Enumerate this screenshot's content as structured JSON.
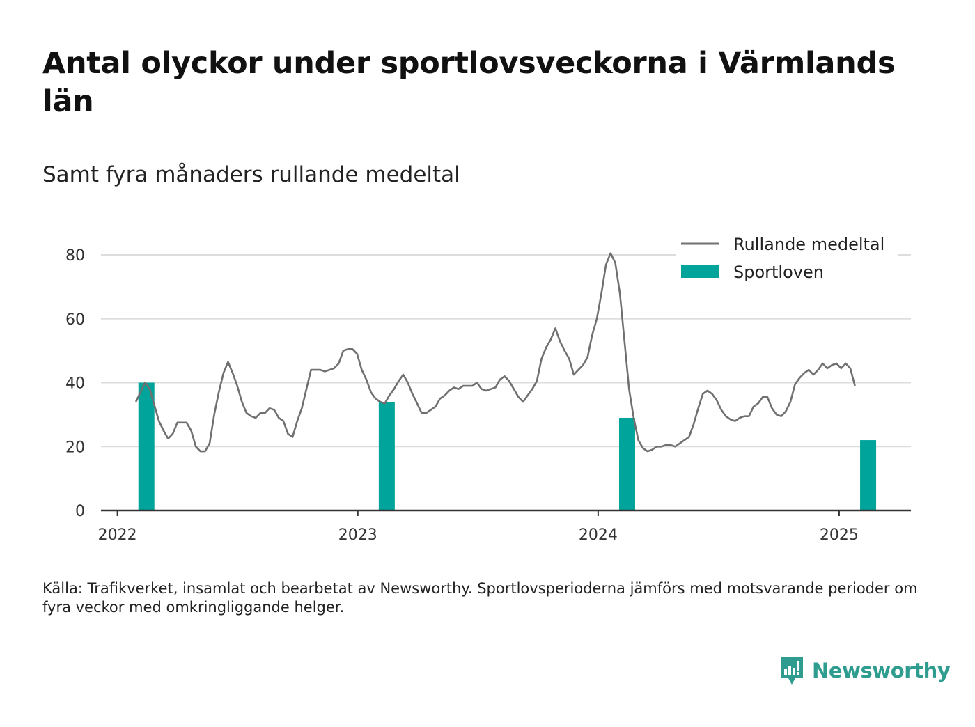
{
  "title": "Antal olyckor under sportlovsveckorna i Värmlands län",
  "subtitle": "Samt fyra månaders rullande medeltal",
  "source": "Källa: Trafikverket, insamlat och bearbetat av Newsworthy. Sportlovsperioderna jämförs med motsvarande perioder om fyra veckor med omkringliggande helger.",
  "brand": {
    "name": "Newsworthy",
    "icon": "newsworthy-logo-icon"
  },
  "colors": {
    "line": "#707070",
    "bar": "#00a49a",
    "grid": "#dddddd",
    "axis": "#333333"
  },
  "chart_data": {
    "type": "bar+line",
    "ylim": [
      0,
      80
    ],
    "yticks": [
      0,
      20,
      40,
      60,
      80
    ],
    "xlim": [
      "2021-12-07",
      "2025-04-20"
    ],
    "xticks": [
      {
        "label": "2022",
        "date": "2022-01-01"
      },
      {
        "label": "2023",
        "date": "2023-01-01"
      },
      {
        "label": "2024",
        "date": "2024-01-01"
      },
      {
        "label": "2025",
        "date": "2025-01-01"
      }
    ],
    "grid": true,
    "legend_position": "top-right",
    "series": [
      {
        "name": "Sportloven",
        "type": "bar",
        "points": [
          {
            "date": "2022-02-14",
            "value": 40
          },
          {
            "date": "2023-02-14",
            "value": 34
          },
          {
            "date": "2024-02-14",
            "value": 29
          },
          {
            "date": "2025-02-14",
            "value": 22
          }
        ]
      },
      {
        "name": "Rullande medeltal",
        "type": "line",
        "points": [
          [
            "2022-01-29",
            34
          ],
          [
            "2022-02-05",
            37
          ],
          [
            "2022-02-12",
            40
          ],
          [
            "2022-02-19",
            38
          ],
          [
            "2022-02-26",
            33
          ],
          [
            "2022-03-05",
            28
          ],
          [
            "2022-03-12",
            25
          ],
          [
            "2022-03-19",
            22.5
          ],
          [
            "2022-03-26",
            24
          ],
          [
            "2022-04-02",
            27.5
          ],
          [
            "2022-04-09",
            27.5
          ],
          [
            "2022-04-16",
            27.5
          ],
          [
            "2022-04-23",
            25
          ],
          [
            "2022-04-30",
            20
          ],
          [
            "2022-05-07",
            18.5
          ],
          [
            "2022-05-14",
            18.5
          ],
          [
            "2022-05-21",
            21
          ],
          [
            "2022-05-28",
            30
          ],
          [
            "2022-06-04",
            37
          ],
          [
            "2022-06-11",
            43
          ],
          [
            "2022-06-18",
            46.5
          ],
          [
            "2022-06-25",
            43
          ],
          [
            "2022-07-02",
            39
          ],
          [
            "2022-07-09",
            34
          ],
          [
            "2022-07-16",
            30.5
          ],
          [
            "2022-07-23",
            29.5
          ],
          [
            "2022-07-30",
            29
          ],
          [
            "2022-08-06",
            30.5
          ],
          [
            "2022-08-13",
            30.5
          ],
          [
            "2022-08-20",
            32
          ],
          [
            "2022-08-27",
            31.5
          ],
          [
            "2022-09-03",
            29
          ],
          [
            "2022-09-10",
            28
          ],
          [
            "2022-09-17",
            24
          ],
          [
            "2022-09-24",
            23
          ],
          [
            "2022-10-01",
            28
          ],
          [
            "2022-10-08",
            32
          ],
          [
            "2022-10-15",
            38
          ],
          [
            "2022-10-22",
            44
          ],
          [
            "2022-10-29",
            44
          ],
          [
            "2022-11-05",
            44
          ],
          [
            "2022-11-12",
            43.5
          ],
          [
            "2022-11-19",
            44
          ],
          [
            "2022-11-26",
            44.5
          ],
          [
            "2022-12-03",
            46
          ],
          [
            "2022-12-10",
            50
          ],
          [
            "2022-12-17",
            50.5
          ],
          [
            "2022-12-24",
            50.5
          ],
          [
            "2022-12-31",
            49
          ],
          [
            "2023-01-07",
            44
          ],
          [
            "2023-01-14",
            41
          ],
          [
            "2023-01-21",
            37
          ],
          [
            "2023-01-28",
            35
          ],
          [
            "2023-02-04",
            34
          ],
          [
            "2023-02-11",
            33.5
          ],
          [
            "2023-02-18",
            36
          ],
          [
            "2023-02-25",
            38
          ],
          [
            "2023-03-04",
            40.5
          ],
          [
            "2023-03-11",
            42.5
          ],
          [
            "2023-03-18",
            40
          ],
          [
            "2023-03-25",
            36.5
          ],
          [
            "2023-04-01",
            33.5
          ],
          [
            "2023-04-08",
            30.5
          ],
          [
            "2023-04-15",
            30.5
          ],
          [
            "2023-04-22",
            31.5
          ],
          [
            "2023-04-29",
            32.5
          ],
          [
            "2023-05-06",
            35
          ],
          [
            "2023-05-13",
            36
          ],
          [
            "2023-05-20",
            37.5
          ],
          [
            "2023-05-27",
            38.5
          ],
          [
            "2023-06-03",
            38
          ],
          [
            "2023-06-10",
            39
          ],
          [
            "2023-06-17",
            39
          ],
          [
            "2023-06-24",
            39
          ],
          [
            "2023-07-01",
            40
          ],
          [
            "2023-07-08",
            38
          ],
          [
            "2023-07-15",
            37.5
          ],
          [
            "2023-07-22",
            38
          ],
          [
            "2023-07-29",
            38.5
          ],
          [
            "2023-08-05",
            41
          ],
          [
            "2023-08-12",
            42
          ],
          [
            "2023-08-19",
            40.5
          ],
          [
            "2023-08-26",
            38
          ],
          [
            "2023-09-02",
            35.5
          ],
          [
            "2023-09-09",
            34
          ],
          [
            "2023-09-16",
            36
          ],
          [
            "2023-09-23",
            38
          ],
          [
            "2023-09-30",
            40.5
          ],
          [
            "2023-10-07",
            47.5
          ],
          [
            "2023-10-14",
            51
          ],
          [
            "2023-10-21",
            53.5
          ],
          [
            "2023-10-28",
            57
          ],
          [
            "2023-11-04",
            53
          ],
          [
            "2023-11-11",
            50
          ],
          [
            "2023-11-18",
            47.5
          ],
          [
            "2023-11-25",
            42.5
          ],
          [
            "2023-12-02",
            44
          ],
          [
            "2023-12-09",
            45.5
          ],
          [
            "2023-12-16",
            48
          ],
          [
            "2023-12-23",
            55
          ],
          [
            "2023-12-30",
            60
          ],
          [
            "2024-01-06",
            68
          ],
          [
            "2024-01-13",
            77
          ],
          [
            "2024-01-20",
            80.5
          ],
          [
            "2024-01-27",
            77.5
          ],
          [
            "2024-02-03",
            68
          ],
          [
            "2024-02-10",
            53
          ],
          [
            "2024-02-17",
            38
          ],
          [
            "2024-02-24",
            29
          ],
          [
            "2024-03-02",
            22
          ],
          [
            "2024-03-09",
            19.5
          ],
          [
            "2024-03-16",
            18.5
          ],
          [
            "2024-03-23",
            19
          ],
          [
            "2024-03-30",
            20
          ],
          [
            "2024-04-06",
            20
          ],
          [
            "2024-04-13",
            20.5
          ],
          [
            "2024-04-20",
            20.5
          ],
          [
            "2024-04-27",
            20
          ],
          [
            "2024-05-04",
            21
          ],
          [
            "2024-05-11",
            22
          ],
          [
            "2024-05-18",
            23
          ],
          [
            "2024-05-25",
            27
          ],
          [
            "2024-06-01",
            32
          ],
          [
            "2024-06-08",
            36.5
          ],
          [
            "2024-06-15",
            37.5
          ],
          [
            "2024-06-22",
            36.5
          ],
          [
            "2024-06-29",
            34.5
          ],
          [
            "2024-07-06",
            31.5
          ],
          [
            "2024-07-13",
            29.5
          ],
          [
            "2024-07-20",
            28.5
          ],
          [
            "2024-07-27",
            28
          ],
          [
            "2024-08-03",
            29
          ],
          [
            "2024-08-10",
            29.5
          ],
          [
            "2024-08-17",
            29.5
          ],
          [
            "2024-08-24",
            32.5
          ],
          [
            "2024-08-31",
            33.5
          ],
          [
            "2024-09-07",
            35.5
          ],
          [
            "2024-09-14",
            35.5
          ],
          [
            "2024-09-21",
            32
          ],
          [
            "2024-09-28",
            30
          ],
          [
            "2024-10-05",
            29.5
          ],
          [
            "2024-10-12",
            31
          ],
          [
            "2024-10-19",
            34
          ],
          [
            "2024-10-26",
            39.5
          ],
          [
            "2024-11-02",
            41.5
          ],
          [
            "2024-11-09",
            43
          ],
          [
            "2024-11-16",
            44
          ],
          [
            "2024-11-23",
            42.5
          ],
          [
            "2024-11-30",
            44
          ],
          [
            "2024-12-07",
            46
          ],
          [
            "2024-12-14",
            44.5
          ],
          [
            "2024-12-21",
            45.5
          ],
          [
            "2024-12-28",
            46
          ],
          [
            "2025-01-04",
            44.5
          ],
          [
            "2025-01-11",
            46
          ],
          [
            "2025-01-18",
            44.5
          ],
          [
            "2025-01-25",
            39
          ]
        ]
      }
    ]
  }
}
